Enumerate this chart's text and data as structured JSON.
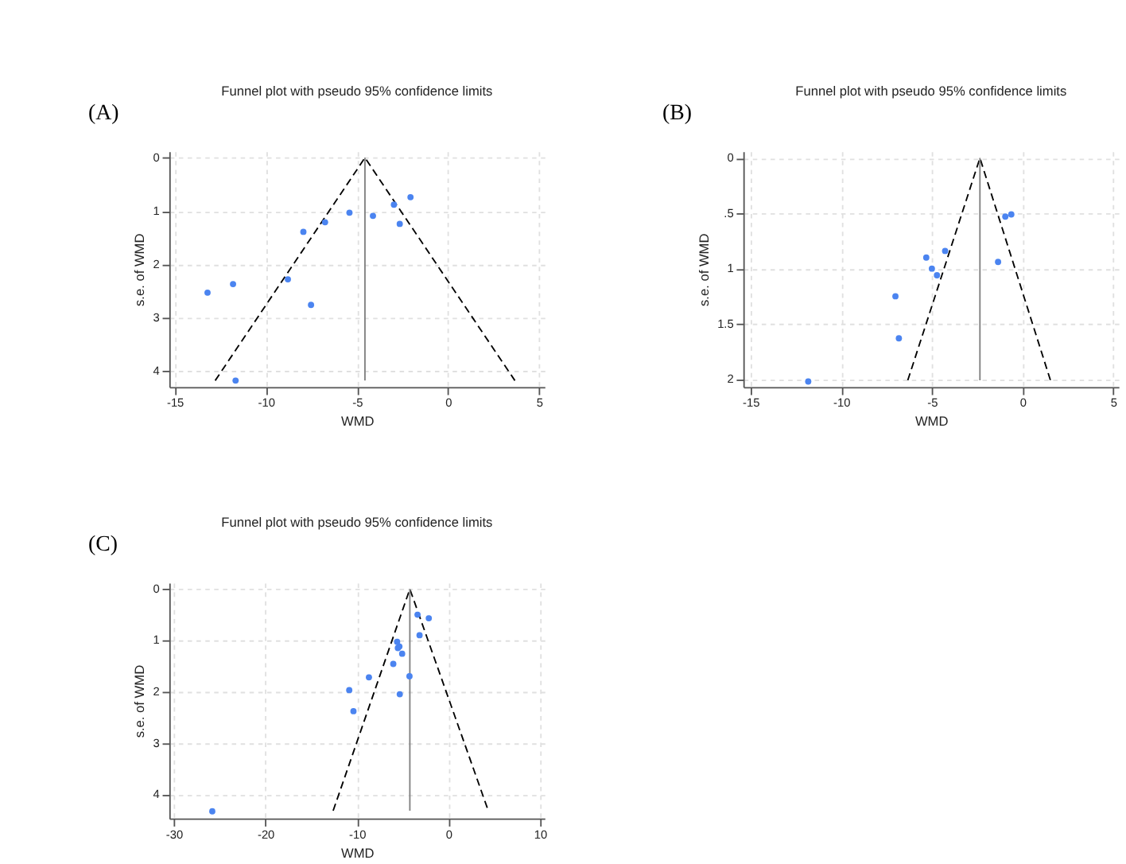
{
  "chart_data": [
    {
      "type": "scatter",
      "title": "Funnel plot with pseudo 95% confidence limits",
      "xlabel": "WMD",
      "ylabel": "s.e. of WMD",
      "annotations": [
        "(A)"
      ],
      "xlim": [
        -15.3,
        5.3
      ],
      "ylim": [
        4.3,
        -0.12
      ],
      "xticks": [
        -15,
        -10,
        -5,
        0,
        5
      ],
      "yticks": [
        0,
        1,
        2,
        3,
        4
      ],
      "grid": true,
      "series": [
        {
          "type": "line",
          "color": "#000000",
          "line_style": "dashed",
          "marker": "none",
          "x": [
            -12.78,
            -4.56,
            3.67
          ],
          "values": [
            4.18,
            0,
            4.18
          ]
        },
        {
          "type": "line",
          "color": "#808080",
          "line_style": "solid",
          "marker": "none",
          "x": [
            -4.56,
            -4.56
          ],
          "values": [
            0,
            4.18
          ]
        },
        {
          "color": "#4b84f0",
          "marker": "circle",
          "x": [
            -2.06,
            -2.97,
            -2.65,
            -4.12,
            -5.41,
            -6.75,
            -7.94,
            -8.79,
            -11.8,
            -13.2,
            -7.52,
            -11.66
          ],
          "values": [
            0.74,
            0.88,
            1.24,
            1.09,
            1.03,
            1.21,
            1.39,
            2.28,
            2.37,
            2.53,
            2.76,
            4.18
          ]
        }
      ]
    },
    {
      "type": "scatter",
      "title": "Funnel plot with pseudo 95% confidence limits",
      "xlabel": "WMD",
      "ylabel": "s.e. of WMD",
      "annotations": [
        "(B)"
      ],
      "xlim": [
        -15.4,
        5.3
      ],
      "ylim": [
        2.07,
        -0.06
      ],
      "xticks": [
        -15,
        -10,
        -5,
        0,
        5
      ],
      "yticks": [
        0,
        {
          "value": 0.5,
          "label": ".5"
        },
        1,
        1.5,
        2
      ],
      "grid": true,
      "series": [
        {
          "type": "line",
          "color": "#000000",
          "line_style": "dashed",
          "marker": "none",
          "x": [
            -6.33,
            -2.35,
            1.54
          ],
          "values": [
            2.01,
            0,
            2.01
          ]
        },
        {
          "type": "line",
          "color": "#808080",
          "line_style": "solid",
          "marker": "none",
          "x": [
            -2.35,
            -2.35
          ],
          "values": [
            0,
            2.01
          ]
        },
        {
          "color": "#4b84f0",
          "marker": "circle",
          "x": [
            -0.62,
            -0.95,
            -1.35,
            -4.27,
            -5.31,
            -5.0,
            -4.72,
            -7.01,
            -6.82,
            -11.82
          ],
          "values": [
            0.51,
            0.53,
            0.94,
            0.84,
            0.9,
            1.0,
            1.06,
            1.25,
            1.63,
            2.02
          ]
        }
      ]
    },
    {
      "type": "scatter",
      "title": "Funnel plot with pseudo 95% confidence limits",
      "xlabel": "WMD",
      "ylabel": "s.e. of WMD",
      "annotations": [
        "(C)"
      ],
      "xlim": [
        -30.5,
        10.5
      ],
      "ylim": [
        4.47,
        -0.12
      ],
      "xticks": [
        -30,
        -20,
        -10,
        0,
        10
      ],
      "yticks": [
        0,
        1,
        2,
        3,
        4
      ],
      "grid": true,
      "series": [
        {
          "type": "line",
          "color": "#000000",
          "line_style": "dashed",
          "marker": "none",
          "x": [
            -12.6,
            -4.22,
            4.35
          ],
          "values": [
            4.32,
            0,
            4.32
          ]
        },
        {
          "type": "line",
          "color": "#808080",
          "line_style": "solid",
          "marker": "none",
          "x": [
            -4.22,
            -4.22
          ],
          "values": [
            0,
            4.32
          ]
        },
        {
          "color": "#4b84f0",
          "marker": "circle",
          "x": [
            -3.38,
            -2.15,
            -3.16,
            -5.61,
            -5.36,
            -5.53,
            -5.06,
            -6.03,
            -8.69,
            -4.26,
            -10.84,
            -5.32,
            -10.38,
            -25.8
          ],
          "values": [
            0.5,
            0.57,
            0.9,
            1.03,
            1.12,
            1.15,
            1.26,
            1.46,
            1.72,
            1.7,
            1.97,
            2.05,
            2.38,
            4.33
          ]
        }
      ]
    }
  ]
}
